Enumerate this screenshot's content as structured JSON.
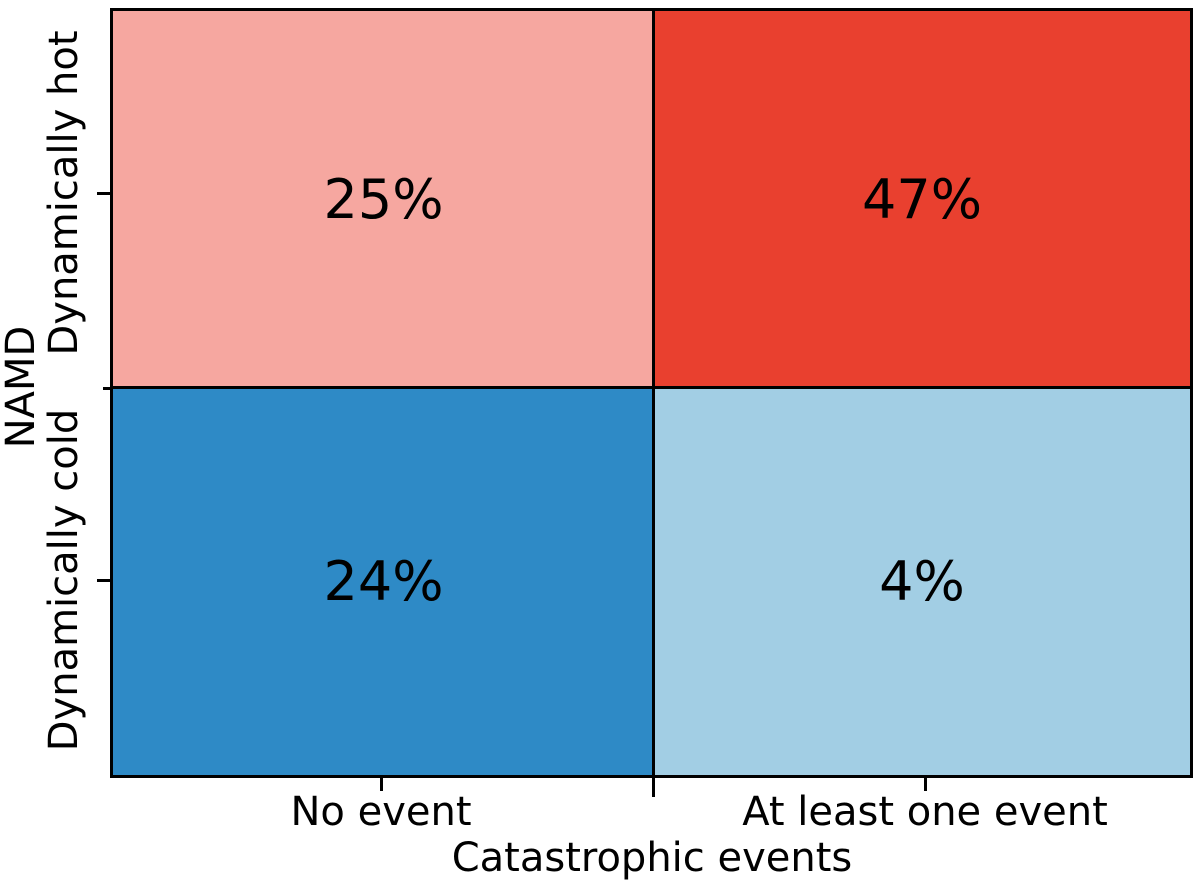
{
  "figure": {
    "background": "#ffffff",
    "axis_color": "#000000",
    "text_color": "#000000"
  },
  "chart_data": {
    "type": "heatmap",
    "title": "",
    "xlabel": "Catastrophic events",
    "ylabel": "NAMD",
    "x_categories": [
      "No event",
      "At least one event"
    ],
    "y_categories": [
      "Dynamically hot",
      "Dynamically cold"
    ],
    "values_unit": "%",
    "grid": false,
    "legend": false,
    "cells": [
      {
        "row": "Dynamically hot",
        "col": "No event",
        "value": 25,
        "label": "25%",
        "color": "#F6A7A0"
      },
      {
        "row": "Dynamically hot",
        "col": "At least one event",
        "value": 47,
        "label": "47%",
        "color": "#E9402F"
      },
      {
        "row": "Dynamically cold",
        "col": "No event",
        "value": 24,
        "label": "24%",
        "color": "#2E8AC6"
      },
      {
        "row": "Dynamically cold",
        "col": "At least one event",
        "value": 4,
        "label": "4%",
        "color": "#A2CEE4"
      }
    ]
  }
}
